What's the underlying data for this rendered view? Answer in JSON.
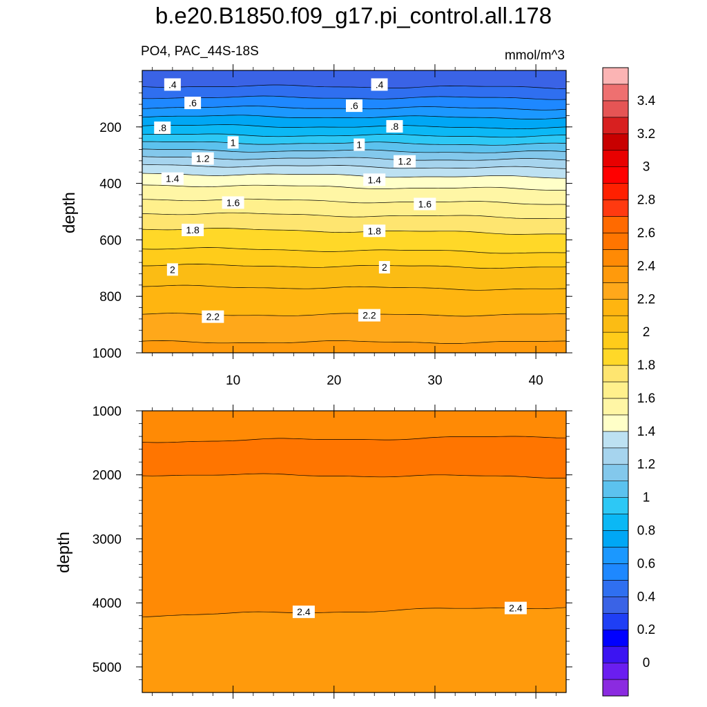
{
  "header": {
    "title": "b.e20.B1850.f09_g17.pi_control.all.178",
    "variable_region": "PO4, PAC_44S-18S",
    "units": "mmol/m^3"
  },
  "chart_data": [
    {
      "type": "heatmap",
      "panel": "upper",
      "xlabel": "",
      "ylabel": "depth",
      "xlim": [
        1,
        43
      ],
      "ylim": [
        1000,
        0
      ],
      "x_ticks": [
        10,
        20,
        30,
        40
      ],
      "y_ticks": [
        200,
        400,
        600,
        800,
        1000
      ],
      "field": "PO4 filled contours, interval 0.1",
      "contours": [
        {
          "level": 0.4,
          "depth_left": 55,
          "depth_right": 60
        },
        {
          "level": 0.5,
          "depth_left": 95,
          "depth_right": 98
        },
        {
          "level": 0.6,
          "depth_left": 130,
          "depth_right": 135
        },
        {
          "level": 0.7,
          "depth_left": 162,
          "depth_right": 168
        },
        {
          "level": 0.8,
          "depth_left": 195,
          "depth_right": 203
        },
        {
          "level": 0.9,
          "depth_left": 228,
          "depth_right": 233
        },
        {
          "level": 1.0,
          "depth_left": 255,
          "depth_right": 262
        },
        {
          "level": 1.1,
          "depth_left": 282,
          "depth_right": 290
        },
        {
          "level": 1.2,
          "depth_left": 308,
          "depth_right": 318
        },
        {
          "level": 1.3,
          "depth_left": 335,
          "depth_right": 347
        },
        {
          "level": 1.4,
          "depth_left": 365,
          "depth_right": 380
        },
        {
          "level": 1.5,
          "depth_left": 405,
          "depth_right": 422
        },
        {
          "level": 1.6,
          "depth_left": 455,
          "depth_right": 472
        },
        {
          "level": 1.7,
          "depth_left": 505,
          "depth_right": 522
        },
        {
          "level": 1.8,
          "depth_left": 560,
          "depth_right": 578
        },
        {
          "level": 1.9,
          "depth_left": 630,
          "depth_right": 645
        },
        {
          "level": 2.0,
          "depth_left": 690,
          "depth_right": 697
        },
        {
          "level": 2.1,
          "depth_left": 765,
          "depth_right": 775
        },
        {
          "level": 2.2,
          "depth_left": 865,
          "depth_right": 865
        },
        {
          "level": 2.3,
          "depth_left": 962,
          "depth_right": 962
        }
      ],
      "contour_labels": [
        {
          "text": ".4",
          "x": 4,
          "depth": 50
        },
        {
          "text": ".4",
          "x": 24.5,
          "depth": 50
        },
        {
          "text": ".6",
          "x": 6,
          "depth": 115
        },
        {
          "text": ".6",
          "x": 22,
          "depth": 125
        },
        {
          "text": ".8",
          "x": 3,
          "depth": 203
        },
        {
          "text": ".8",
          "x": 26,
          "depth": 198
        },
        {
          "text": "1",
          "x": 10,
          "depth": 255
        },
        {
          "text": "1",
          "x": 22.5,
          "depth": 263
        },
        {
          "text": "1.2",
          "x": 7,
          "depth": 312
        },
        {
          "text": "1.2",
          "x": 27,
          "depth": 322
        },
        {
          "text": "1.4",
          "x": 4,
          "depth": 383
        },
        {
          "text": "1.4",
          "x": 24,
          "depth": 387
        },
        {
          "text": "1.6",
          "x": 10,
          "depth": 468
        },
        {
          "text": "1.6",
          "x": 29,
          "depth": 473
        },
        {
          "text": "1.8",
          "x": 6,
          "depth": 565
        },
        {
          "text": "1.8",
          "x": 24,
          "depth": 568
        },
        {
          "text": "2",
          "x": 4,
          "depth": 705
        },
        {
          "text": "2",
          "x": 25,
          "depth": 697
        },
        {
          "text": "2.2",
          "x": 8,
          "depth": 872
        },
        {
          "text": "2.2",
          "x": 23.5,
          "depth": 867
        }
      ]
    },
    {
      "type": "heatmap",
      "panel": "lower",
      "xlabel": "",
      "ylabel": "depth",
      "xlim": [
        1,
        43
      ],
      "ylim": [
        5400,
        1000
      ],
      "x_ticks": [
        10,
        20,
        30,
        40
      ],
      "y_ticks": [
        1000,
        2000,
        3000,
        4000,
        5000
      ],
      "field": "PO4 filled contours, interval 0.1",
      "contours": [
        {
          "level": 2.5,
          "depth_left": 1480,
          "depth_right": 1400
        },
        {
          "level": 2.5,
          "depth_left": 1995,
          "depth_right": 2030
        },
        {
          "level": 2.4,
          "depth_left": 4200,
          "depth_right": 4060
        }
      ],
      "contour_labels": [
        {
          "text": "2.4",
          "x": 17,
          "depth": 4140
        },
        {
          "text": "2.4",
          "x": 38,
          "depth": 4080
        }
      ]
    }
  ],
  "colorbar": {
    "labels": [
      "3.4",
      "3.2",
      "3",
      "2.8",
      "2.6",
      "2.4",
      "2.2",
      "2",
      "1.8",
      "1.6",
      "1.4",
      "1.2",
      "1",
      "0.8",
      "0.6",
      "0.4",
      "0.2",
      "0"
    ],
    "colors_bottom_to_top": [
      "#8b2be0",
      "#6a1ef0",
      "#3c14f2",
      "#0000ff",
      "#1f3ff5",
      "#3a63e6",
      "#2f6ff0",
      "#1e88ff",
      "#1b98ff",
      "#00a7f5",
      "#0bb8f5",
      "#2dc8f5",
      "#5cc2ee",
      "#83c8ec",
      "#a6d4ee",
      "#bde1f2",
      "#ffffc8",
      "#fff6a5",
      "#fff08c",
      "#fee570",
      "#ffd828",
      "#ffcc1a",
      "#fbbc14",
      "#ffb510",
      "#ffa81a",
      "#ff9a0c",
      "#ff8a05",
      "#ff7500",
      "#ff6a00",
      "#ff3a10",
      "#ff2000",
      "#ff0000",
      "#e80000",
      "#c80000",
      "#d82020",
      "#e55555",
      "#ee7070",
      "#fbb4b4"
    ]
  }
}
